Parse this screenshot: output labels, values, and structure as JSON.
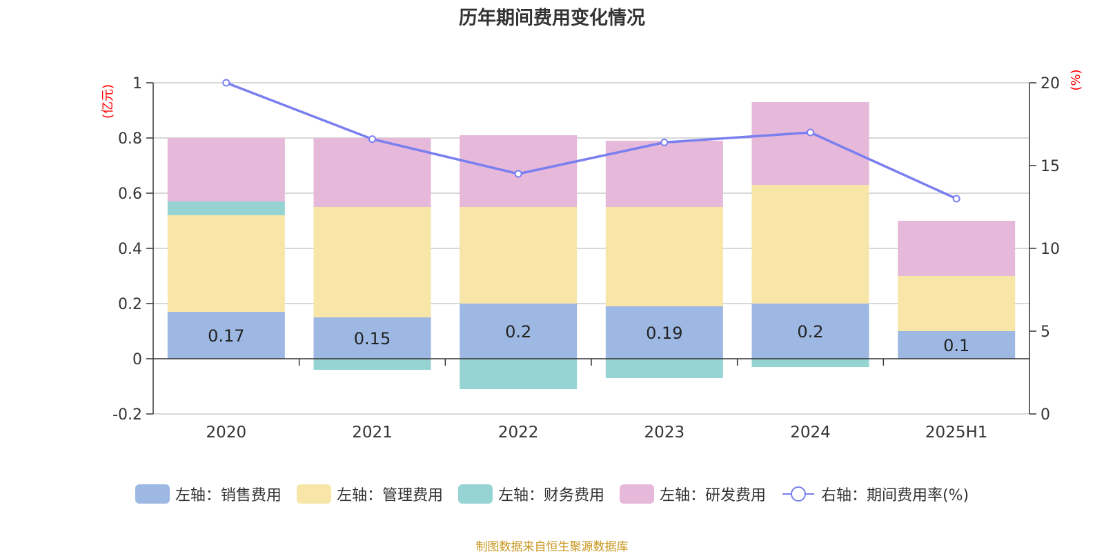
{
  "title": "历年期间费用变化情况",
  "source": "制图数据来自恒生聚源数据库",
  "colors": {
    "sales": "#9db8e2",
    "admin": "#f7e6a8",
    "finance": "#96d4d4",
    "rd": "#e6b8d9",
    "rate": "#7a7ff0",
    "axis_unit": "#ff0000"
  },
  "chart_data": {
    "type": "bar",
    "stacked": true,
    "categories": [
      "2020",
      "2021",
      "2022",
      "2023",
      "2024",
      "2025H1"
    ],
    "left_axis": {
      "unit": "(亿元)",
      "ylim": [
        -0.2,
        1
      ],
      "ticks": [
        "-0.2",
        "0",
        "0.2",
        "0.4",
        "0.6",
        "0.8",
        "1"
      ]
    },
    "right_axis": {
      "unit": "(%)",
      "ylim": [
        0,
        20
      ],
      "ticks": [
        "0",
        "5",
        "10",
        "15",
        "20"
      ]
    },
    "series": [
      {
        "name": "左轴：销售费用",
        "key": "sales",
        "axis": "left",
        "values": [
          0.17,
          0.15,
          0.2,
          0.19,
          0.2,
          0.1
        ],
        "labels": [
          "0.17",
          "0.15",
          "0.2",
          "0.19",
          "0.2",
          "0.1"
        ]
      },
      {
        "name": "左轴：管理费用",
        "key": "admin",
        "axis": "left",
        "values": [
          0.35,
          0.4,
          0.35,
          0.36,
          0.43,
          0.2
        ]
      },
      {
        "name": "左轴：财务费用",
        "key": "finance",
        "axis": "left",
        "values": [
          0.05,
          -0.04,
          -0.11,
          -0.07,
          -0.03,
          0.0
        ]
      },
      {
        "name": "左轴：研发费用",
        "key": "rd",
        "axis": "left",
        "values": [
          0.23,
          0.25,
          0.26,
          0.24,
          0.3,
          0.2
        ]
      },
      {
        "name": "右轴：期间费用率(%)",
        "key": "rate",
        "axis": "right",
        "type": "line",
        "values": [
          20.0,
          16.6,
          14.5,
          16.4,
          17.0,
          13.0
        ]
      }
    ],
    "grid": true,
    "legend_position": "bottom"
  }
}
